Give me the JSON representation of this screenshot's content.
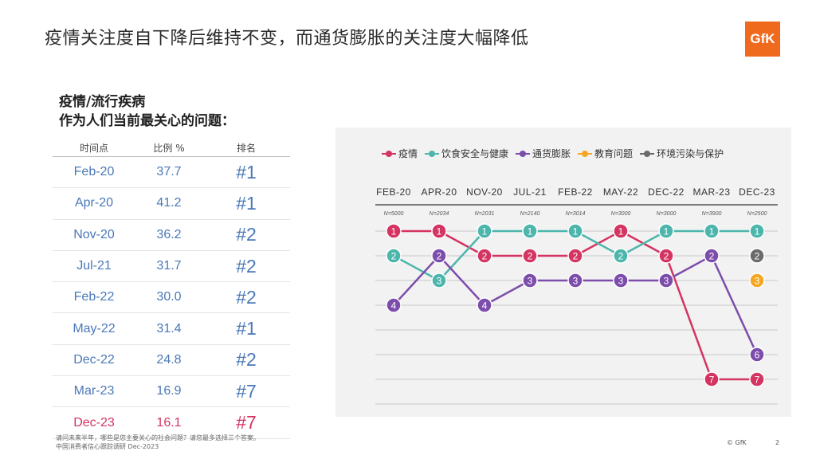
{
  "header": {
    "title": "疫情关注度自下降后维持不变，而通货膨胀的关注度大幅降低",
    "logo_text": "GfK"
  },
  "table": {
    "heading_line1": "疫情/流行疾病",
    "heading_line2": "作为人们当前最关心的问题：",
    "columns": [
      "时间点",
      "比例 %",
      "排名"
    ],
    "rows": [
      {
        "time": "Feb-20",
        "pct": "37.7",
        "rank": "#1"
      },
      {
        "time": "Apr-20",
        "pct": "41.2",
        "rank": "#1"
      },
      {
        "time": "Nov-20",
        "pct": "36.2",
        "rank": "#2"
      },
      {
        "time": "Jul-21",
        "pct": "31.7",
        "rank": "#2"
      },
      {
        "time": "Feb-22",
        "pct": "30.0",
        "rank": "#2"
      },
      {
        "time": "May-22",
        "pct": "31.4",
        "rank": "#1"
      },
      {
        "time": "Dec-22",
        "pct": "24.8",
        "rank": "#2"
      },
      {
        "time": "Mar-23",
        "pct": "16.9",
        "rank": "#7"
      },
      {
        "time": "Dec-23",
        "pct": "16.1",
        "rank": "#7"
      }
    ],
    "highlight_color": "#d43461",
    "text_color": "#4a78b8"
  },
  "chart_data": {
    "type": "line",
    "x": [
      "FEB-20",
      "APR-20",
      "NOV-20",
      "JUL-21",
      "FEB-22",
      "MAY-22",
      "DEC-22",
      "MAR-23",
      "DEC-23"
    ],
    "sample_sizes": [
      "N=5000",
      "N=2034",
      "N=2031",
      "N=2140",
      "N=3014",
      "N=3000",
      "N=3000",
      "N=3900",
      "N=2500"
    ],
    "y_axis": "rank",
    "y_inverted": true,
    "ylim": [
      1,
      7
    ],
    "series": [
      {
        "name": "疫情",
        "color": "#d43461",
        "values": [
          1,
          1,
          2,
          2,
          2,
          1,
          2,
          7,
          7
        ]
      },
      {
        "name": "饮食安全与健康",
        "color": "#4db6ac",
        "values": [
          2,
          3,
          1,
          1,
          1,
          2,
          1,
          1,
          1
        ]
      },
      {
        "name": "通货膨胀",
        "color": "#7c4dab",
        "values": [
          4,
          2,
          4,
          3,
          3,
          3,
          3,
          2,
          6
        ]
      },
      {
        "name": "教育问题",
        "color": "#f5a623",
        "values": [
          null,
          null,
          null,
          null,
          null,
          null,
          null,
          null,
          3
        ]
      },
      {
        "name": "环境污染与保护",
        "color": "#6b6b6b",
        "values": [
          null,
          null,
          null,
          null,
          null,
          null,
          null,
          null,
          2
        ]
      }
    ],
    "legend_position": "top",
    "grid": true
  },
  "footer": {
    "note_line1": "请问未来半年，哪些是您主要关心的社会问题？请您最多选择三个答案。",
    "note_line2": "中国消费者信心跟踪调研 Dec-2023",
    "copyright": "© GfK",
    "page_number": "2"
  }
}
